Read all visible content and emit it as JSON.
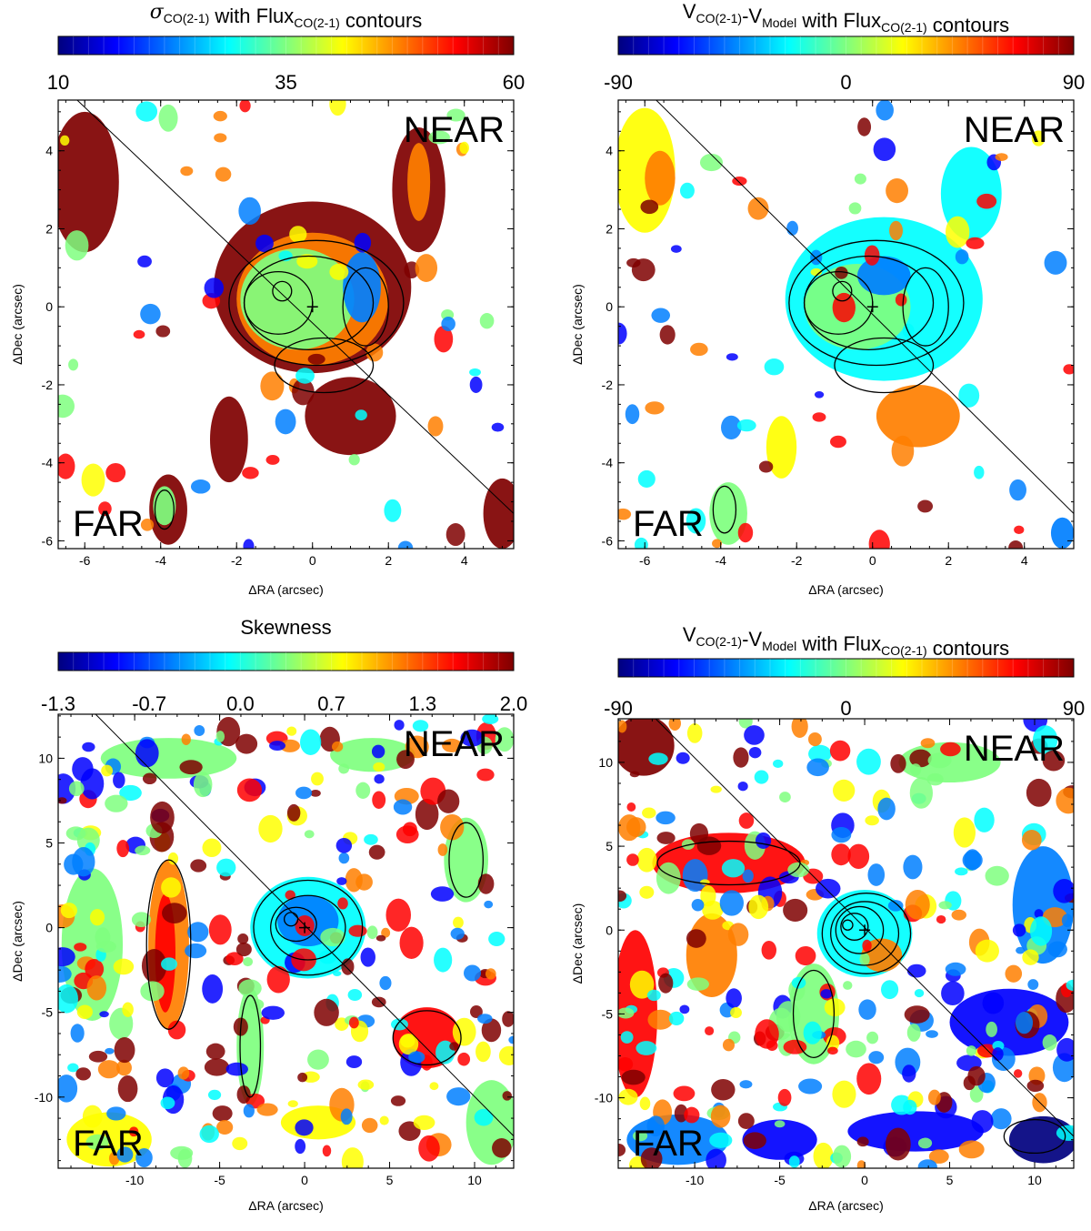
{
  "colors": {
    "jet": [
      "#00007f",
      "#0000ff",
      "#007fff",
      "#00ffff",
      "#7fff7f",
      "#ffff00",
      "#ff7f00",
      "#ff0000",
      "#7f0000"
    ],
    "frame": "#000000",
    "blank": "#ffffff",
    "contour": "#000000"
  },
  "chart_data": [
    {
      "type": "heatmap",
      "title": {
        "sym": "σ",
        "sym_sub": "CO(2-1)",
        "mid": " with Flux",
        "mid_sub": "CO(2-1)",
        "end": " contours"
      },
      "colorbar": {
        "min": 10,
        "max": 60,
        "tick_labels": [
          "10",
          "35",
          "60"
        ]
      },
      "xlabel": "ΔRA (arcsec)",
      "ylabel": "ΔDec (arcsec)",
      "xlim": [
        -6.7,
        5.3
      ],
      "ylim": [
        -6.2,
        5.3
      ],
      "xticks": [
        -6,
        -4,
        -2,
        0,
        2,
        4
      ],
      "yticks": [
        -6,
        -4,
        -2,
        0,
        2,
        4
      ],
      "annotations": {
        "near": "NEAR",
        "far": "FAR"
      },
      "diagonal": {
        "from": [
          -6.2,
          5.3
        ],
        "to": [
          5.3,
          -5.3
        ]
      },
      "center_marker": [
        0,
        0
      ]
    },
    {
      "type": "heatmap",
      "title": {
        "sym": "V",
        "sym_sub": "CO(2-1)",
        "mid": "-V",
        "mid_sub": "Model",
        "end": " with Flux",
        "end_sub": "CO(2-1)",
        "tail": " contours"
      },
      "colorbar": {
        "min": -90,
        "max": 90,
        "tick_labels": [
          "-90",
          "0",
          "90"
        ]
      },
      "xlabel": "ΔRA (arcsec)",
      "ylabel": "ΔDec (arcsec)",
      "xlim": [
        -6.7,
        5.3
      ],
      "ylim": [
        -6.2,
        5.3
      ],
      "xticks": [
        -6,
        -4,
        -2,
        0,
        2,
        4
      ],
      "yticks": [
        -6,
        -4,
        -2,
        0,
        2,
        4
      ],
      "annotations": {
        "near": "NEAR",
        "far": "FAR"
      },
      "diagonal": {
        "from": [
          -5.7,
          5.3
        ],
        "to": [
          5.3,
          -5.3
        ]
      },
      "center_marker": [
        0,
        0
      ]
    },
    {
      "type": "heatmap",
      "title": {
        "sym": "Skewness"
      },
      "colorbar": {
        "min": -1.3,
        "max": 2.0,
        "tick_labels": [
          "-1.3",
          "-0.7",
          "0.0",
          "0.7",
          "1.3",
          "2.0"
        ]
      },
      "xlabel": "ΔRA (arcsec)",
      "ylabel": "ΔDec (arcsec)",
      "xlim": [
        -14.5,
        12.3
      ],
      "ylim": [
        -14.2,
        12.6
      ],
      "xticks": [
        -10,
        -5,
        0,
        5,
        10
      ],
      "yticks": [
        -10,
        -5,
        0,
        5,
        10
      ],
      "annotations": {
        "near": "NEAR",
        "far": "FAR"
      },
      "diagonal": {
        "from": [
          -12.3,
          12.6
        ],
        "to": [
          12.3,
          -12.3
        ]
      },
      "center_marker": [
        0,
        0
      ]
    },
    {
      "type": "heatmap",
      "title": {
        "sym": "V",
        "sym_sub": "CO(2-1)",
        "mid": "-V",
        "mid_sub": "Model",
        "end": " with Flux",
        "end_sub": "CO(2-1)",
        "tail": " contours"
      },
      "colorbar": {
        "min": -90,
        "max": 90,
        "tick_labels": [
          "-90",
          "0",
          "90"
        ]
      },
      "xlabel": "ΔRA (arcsec)",
      "ylabel": "ΔDec (arcsec)",
      "xlim": [
        -14.5,
        12.3
      ],
      "ylim": [
        -14.2,
        12.6
      ],
      "xticks": [
        -10,
        -5,
        0,
        5,
        10
      ],
      "yticks": [
        -10,
        -5,
        0,
        5,
        10
      ],
      "annotations": {
        "near": "NEAR",
        "far": "FAR"
      },
      "diagonal": {
        "from": [
          -12.3,
          12.6
        ],
        "to": [
          12.3,
          -12.3
        ]
      },
      "center_marker": [
        0,
        0
      ]
    }
  ]
}
